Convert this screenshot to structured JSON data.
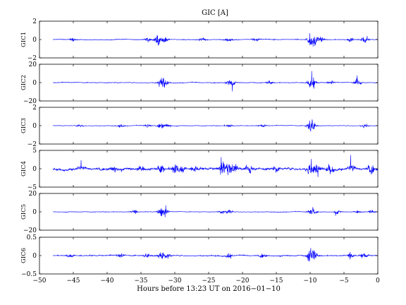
{
  "chart_data": {
    "type": "line",
    "title": "GIC [A]",
    "xlabel": "Hours before  13:23 UT on 2016−01−10",
    "xlim": [
      -50,
      0
    ],
    "x_ticks": [
      -50,
      -45,
      -40,
      -35,
      -30,
      -25,
      -20,
      -15,
      -10,
      -5,
      0
    ],
    "x_tick_labels": [
      "−50",
      "−45",
      "−40",
      "−35",
      "−30",
      "−25",
      "−20",
      "−15",
      "−10",
      "−5",
      "0"
    ],
    "data_range_x": [
      -48,
      0
    ],
    "series_color": "#0000ff",
    "panels": [
      {
        "name": "GIC1",
        "ylabel": "GIC1",
        "ylim": [
          -2,
          2
        ],
        "y_ticks": [
          -2,
          0,
          2
        ],
        "y_tick_labels": [
          "−2",
          "0",
          "2"
        ],
        "baseline": 0,
        "noise": 0.05,
        "bursts": [
          {
            "x": -45,
            "amp": 0.35
          },
          {
            "x": -34,
            "amp": 0.5
          },
          {
            "x": -32.5,
            "amp": 0.9
          },
          {
            "x": -31.5,
            "amp": 0.6
          },
          {
            "x": -26,
            "amp": 0.3
          },
          {
            "x": -22,
            "amp": 0.35
          },
          {
            "x": -18,
            "amp": 0.3
          },
          {
            "x": -10,
            "amp": 1.2
          },
          {
            "x": -9.5,
            "amp": 1.1
          },
          {
            "x": -8.5,
            "amp": 0.6
          },
          {
            "x": -4,
            "amp": 0.5
          },
          {
            "x": -2,
            "amp": 0.8
          }
        ]
      },
      {
        "name": "GIC2",
        "ylabel": "GIC2",
        "ylim": [
          -20,
          20
        ],
        "y_ticks": [
          -20,
          0,
          20
        ],
        "y_tick_labels": [
          "−20",
          "0",
          "20"
        ],
        "baseline": 0,
        "noise": 0.5,
        "bursts": [
          {
            "x": -32,
            "amp": 9
          },
          {
            "x": -31.5,
            "amp": 6
          },
          {
            "x": -22,
            "amp": 5
          },
          {
            "x": -21.5,
            "amp": 4
          },
          {
            "x": -16,
            "amp": 3
          },
          {
            "x": -10,
            "amp": 9
          },
          {
            "x": -9.5,
            "amp": 7
          },
          {
            "x": -7,
            "amp": 3
          },
          {
            "x": -3,
            "amp": 8
          }
        ]
      },
      {
        "name": "GIC3",
        "ylabel": "GIC3",
        "ylim": [
          -2,
          2
        ],
        "y_ticks": [
          -2,
          0,
          2
        ],
        "y_tick_labels": [
          "−2",
          "0",
          "2"
        ],
        "baseline": 0,
        "noise": 0.04,
        "bursts": [
          {
            "x": -44,
            "amp": 0.25
          },
          {
            "x": -38,
            "amp": 0.3
          },
          {
            "x": -34,
            "amp": 0.35
          },
          {
            "x": -32,
            "amp": 0.55
          },
          {
            "x": -31,
            "amp": 0.35
          },
          {
            "x": -22,
            "amp": 0.3
          },
          {
            "x": -17,
            "amp": 0.3
          },
          {
            "x": -10,
            "amp": 0.9
          },
          {
            "x": -9.5,
            "amp": 0.8
          },
          {
            "x": -2,
            "amp": 0.5
          }
        ]
      },
      {
        "name": "GIC4",
        "ylabel": "GIC4",
        "ylim": [
          -5,
          5
        ],
        "y_ticks": [
          -5,
          0,
          5
        ],
        "y_tick_labels": [
          "−5",
          "0",
          "5"
        ],
        "baseline": 0,
        "noise": 0.45,
        "bursts": [
          {
            "x": -44,
            "amp": 1.2
          },
          {
            "x": -39,
            "amp": 1.5
          },
          {
            "x": -35,
            "amp": 1.5
          },
          {
            "x": -32,
            "amp": 2
          },
          {
            "x": -30,
            "amp": 2.5
          },
          {
            "x": -29,
            "amp": 2
          },
          {
            "x": -27,
            "amp": 1.5
          },
          {
            "x": -23,
            "amp": 3.5
          },
          {
            "x": -22,
            "amp": 3
          },
          {
            "x": -21,
            "amp": 2.5
          },
          {
            "x": -19,
            "amp": 1.8
          },
          {
            "x": -15,
            "amp": 1.2
          },
          {
            "x": -10,
            "amp": 4
          },
          {
            "x": -9,
            "amp": 3
          },
          {
            "x": -7,
            "amp": 2
          },
          {
            "x": -4,
            "amp": 2
          },
          {
            "x": -1,
            "amp": 2
          }
        ]
      },
      {
        "name": "GIC5",
        "ylabel": "GIC5",
        "ylim": [
          -20,
          20
        ],
        "y_ticks": [
          -20,
          0,
          20
        ],
        "y_tick_labels": [
          "−20",
          "0",
          "20"
        ],
        "baseline": 0,
        "noise": 0.4,
        "bursts": [
          {
            "x": -36,
            "amp": 4
          },
          {
            "x": -32,
            "amp": 10
          },
          {
            "x": -31.5,
            "amp": 8
          },
          {
            "x": -23,
            "amp": 3
          },
          {
            "x": -22,
            "amp": 5
          },
          {
            "x": -10,
            "amp": 5
          },
          {
            "x": -9.5,
            "amp": 4
          },
          {
            "x": -6,
            "amp": 3
          },
          {
            "x": -3,
            "amp": 3
          },
          {
            "x": -1,
            "amp": 3
          }
        ]
      },
      {
        "name": "GIC6",
        "ylabel": "GIC6",
        "ylim": [
          -0.5,
          0.5
        ],
        "y_ticks": [
          -0.5,
          0,
          0.5
        ],
        "y_tick_labels": [
          "−0.5",
          "0",
          "0.5"
        ],
        "baseline": 0,
        "noise": 0.02,
        "bursts": [
          {
            "x": -45.5,
            "amp": 0.1
          },
          {
            "x": -38,
            "amp": 0.1
          },
          {
            "x": -34,
            "amp": 0.12
          },
          {
            "x": -32,
            "amp": 0.18
          },
          {
            "x": -31,
            "amp": 0.12
          },
          {
            "x": -22,
            "amp": 0.1
          },
          {
            "x": -17,
            "amp": 0.08
          },
          {
            "x": -10,
            "amp": 0.28
          },
          {
            "x": -9.5,
            "amp": 0.25
          },
          {
            "x": -4,
            "amp": 0.15
          },
          {
            "x": -2,
            "amp": 0.15
          }
        ]
      }
    ]
  }
}
